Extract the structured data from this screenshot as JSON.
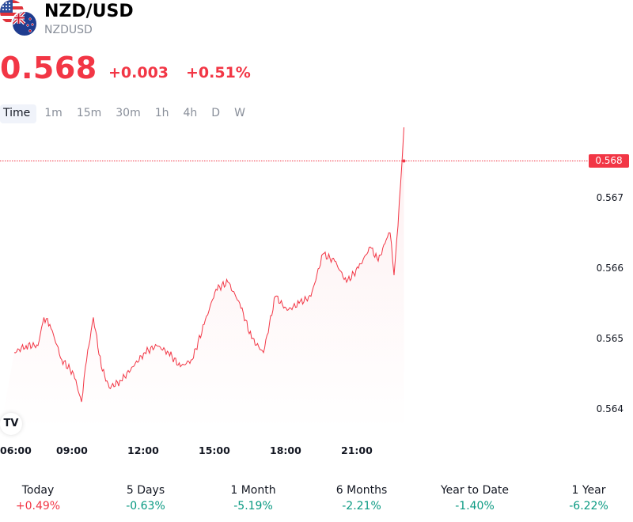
{
  "header": {
    "title": "NZD/USD",
    "symbol": "NZDUSD",
    "flags": [
      "us-flag-icon",
      "nz-flag-icon"
    ]
  },
  "quote": {
    "price": "0.568",
    "change": "+0.003",
    "change_pct": "+0.51%",
    "color": "#f23645"
  },
  "timeframes": {
    "active": "Time",
    "items": [
      "Time",
      "1m",
      "15m",
      "30m",
      "1h",
      "4h",
      "D",
      "W"
    ]
  },
  "chart_data": {
    "type": "area",
    "y_ticks": [
      "0.567",
      "0.566",
      "0.565",
      "0.564"
    ],
    "x_ticks": [
      "06:00",
      "09:00",
      "12:00",
      "15:00",
      "18:00",
      "21:00"
    ],
    "last_price_label": "0.568",
    "ylim": [
      0.5637,
      0.5684
    ],
    "line_color": "#f23645",
    "series": [
      {
        "x": [
          "06:00",
          "06:30",
          "07:00",
          "07:15",
          "07:30",
          "08:00",
          "08:30",
          "08:50",
          "09:00",
          "09:20",
          "09:40",
          "10:00",
          "10:30",
          "11:00",
          "11:30",
          "12:00",
          "12:30",
          "13:00",
          "13:30",
          "14:00",
          "14:30",
          "15:00",
          "15:30",
          "16:00",
          "16:30",
          "17:00",
          "17:30",
          "18:00",
          "18:30",
          "19:00",
          "19:30",
          "20:00",
          "20:30",
          "21:00",
          "21:20",
          "21:40",
          "21:50",
          "22:00",
          "22:10",
          "22:20",
          "22:25"
        ],
        "values": [
          0.5648,
          0.5649,
          0.5649,
          0.5653,
          0.5652,
          0.5647,
          0.5645,
          0.5641,
          0.5646,
          0.5653,
          0.5646,
          0.5643,
          0.5644,
          0.5646,
          0.5648,
          0.5649,
          0.5648,
          0.5646,
          0.5647,
          0.5652,
          0.5657,
          0.5658,
          0.5655,
          0.565,
          0.5648,
          0.5656,
          0.5654,
          0.5655,
          0.5656,
          0.5662,
          0.5661,
          0.5658,
          0.566,
          0.5663,
          0.5661,
          0.5664,
          0.5665,
          0.5659,
          0.5666,
          0.5675,
          0.568
        ]
      }
    ]
  },
  "performance": [
    {
      "label": "Today",
      "value": "+0.49%",
      "color": "#f23645"
    },
    {
      "label": "5 Days",
      "value": "-0.63%",
      "color": "#089981"
    },
    {
      "label": "1 Month",
      "value": "-5.19%",
      "color": "#089981"
    },
    {
      "label": "6 Months",
      "value": "-2.21%",
      "color": "#089981"
    },
    {
      "label": "Year to Date",
      "value": "-1.40%",
      "color": "#089981"
    },
    {
      "label": "1 Year",
      "value": "-6.22%",
      "color": "#089981"
    }
  ]
}
